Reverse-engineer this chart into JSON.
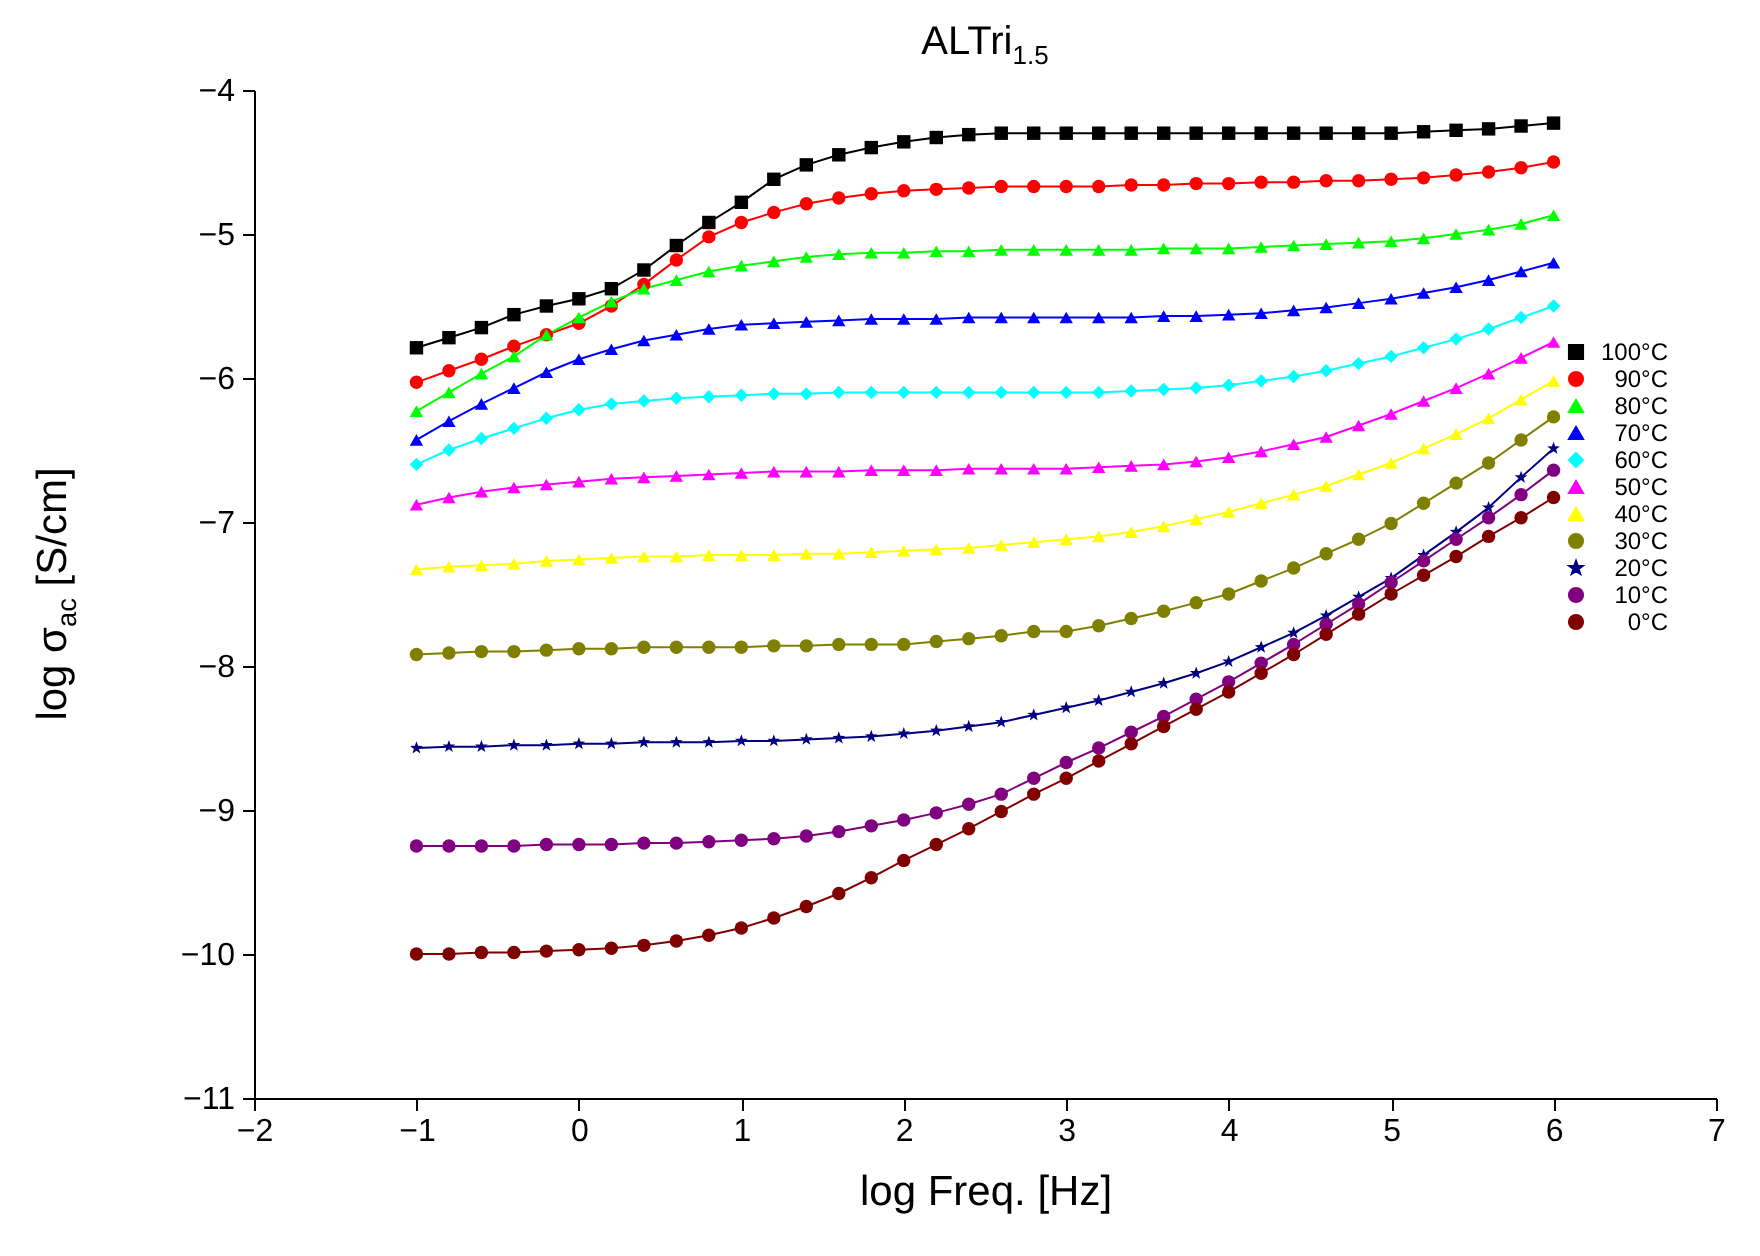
{
  "chart_data": {
    "type": "line",
    "title": "ALTri$_{1.5}$",
    "xlabel": "log Freq. [Hz]",
    "ylabel": "log σ$_{ac}$ [S/cm]",
    "x": [
      -1,
      -0.8,
      -0.6,
      -0.4,
      -0.2,
      0,
      0.2,
      0.4,
      0.6,
      0.8,
      1,
      1.2,
      1.4,
      1.6,
      1.8,
      2,
      2.2,
      2.4,
      2.6,
      2.8,
      3,
      3.2,
      3.4,
      3.6,
      3.8,
      4,
      4.2,
      4.4,
      4.6,
      4.8,
      5,
      5.2,
      5.4,
      5.6,
      5.8,
      6
    ],
    "xlim": [
      -2,
      7
    ],
    "xticks": [
      -2,
      -1,
      0,
      1,
      2,
      3,
      4,
      5,
      6,
      7
    ],
    "ylim": [
      -11,
      -4
    ],
    "yticks": [
      -11,
      -10,
      -9,
      -8,
      -7,
      -6,
      -5,
      -4
    ],
    "grid": false,
    "legend": "right",
    "line_style": "solid",
    "series": [
      {
        "name": "100°C",
        "color": "#000000",
        "marker": "square",
        "values": [
          -5.79,
          -5.72,
          -5.65,
          -5.56,
          -5.5,
          -5.45,
          -5.38,
          -5.25,
          -5.08,
          -4.92,
          -4.78,
          -4.62,
          -4.52,
          -4.45,
          -4.4,
          -4.36,
          -4.33,
          -4.31,
          -4.3,
          -4.3,
          -4.3,
          -4.3,
          -4.3,
          -4.3,
          -4.3,
          -4.3,
          -4.3,
          -4.3,
          -4.3,
          -4.3,
          -4.3,
          -4.29,
          -4.28,
          -4.27,
          -4.25,
          -4.23
        ]
      },
      {
        "name": "90°C",
        "color": "#ff0000",
        "marker": "circle",
        "values": [
          -6.03,
          -5.95,
          -5.87,
          -5.78,
          -5.7,
          -5.62,
          -5.5,
          -5.35,
          -5.18,
          -5.02,
          -4.92,
          -4.85,
          -4.79,
          -4.75,
          -4.72,
          -4.7,
          -4.69,
          -4.68,
          -4.67,
          -4.67,
          -4.67,
          -4.67,
          -4.66,
          -4.66,
          -4.65,
          -4.65,
          -4.64,
          -4.64,
          -4.63,
          -4.63,
          -4.62,
          -4.61,
          -4.59,
          -4.57,
          -4.54,
          -4.5
        ]
      },
      {
        "name": "80°C",
        "color": "#00ff00",
        "marker": "triangle",
        "values": [
          -6.23,
          -6.1,
          -5.97,
          -5.85,
          -5.7,
          -5.58,
          -5.47,
          -5.38,
          -5.32,
          -5.26,
          -5.22,
          -5.19,
          -5.16,
          -5.14,
          -5.13,
          -5.13,
          -5.12,
          -5.12,
          -5.11,
          -5.11,
          -5.11,
          -5.11,
          -5.11,
          -5.1,
          -5.1,
          -5.1,
          -5.09,
          -5.08,
          -5.07,
          -5.06,
          -5.05,
          -5.03,
          -5.0,
          -4.97,
          -4.93,
          -4.87
        ]
      },
      {
        "name": "70°C",
        "color": "#0000ff",
        "marker": "triangle",
        "values": [
          -6.43,
          -6.3,
          -6.18,
          -6.07,
          -5.96,
          -5.87,
          -5.8,
          -5.74,
          -5.7,
          -5.66,
          -5.63,
          -5.62,
          -5.61,
          -5.6,
          -5.59,
          -5.59,
          -5.59,
          -5.58,
          -5.58,
          -5.58,
          -5.58,
          -5.58,
          -5.58,
          -5.57,
          -5.57,
          -5.56,
          -5.55,
          -5.53,
          -5.51,
          -5.48,
          -5.45,
          -5.41,
          -5.37,
          -5.32,
          -5.26,
          -5.2
        ]
      },
      {
        "name": "60°C",
        "color": "#00ffff",
        "marker": "diamond",
        "values": [
          -6.6,
          -6.5,
          -6.42,
          -6.35,
          -6.28,
          -6.22,
          -6.18,
          -6.16,
          -6.14,
          -6.13,
          -6.12,
          -6.11,
          -6.11,
          -6.1,
          -6.1,
          -6.1,
          -6.1,
          -6.1,
          -6.1,
          -6.1,
          -6.1,
          -6.1,
          -6.09,
          -6.08,
          -6.07,
          -6.05,
          -6.02,
          -5.99,
          -5.95,
          -5.9,
          -5.85,
          -5.79,
          -5.73,
          -5.66,
          -5.58,
          -5.5
        ]
      },
      {
        "name": "50°C",
        "color": "#ff00ff",
        "marker": "triangle",
        "values": [
          -6.88,
          -6.83,
          -6.79,
          -6.76,
          -6.74,
          -6.72,
          -6.7,
          -6.69,
          -6.68,
          -6.67,
          -6.66,
          -6.65,
          -6.65,
          -6.65,
          -6.64,
          -6.64,
          -6.64,
          -6.63,
          -6.63,
          -6.63,
          -6.63,
          -6.62,
          -6.61,
          -6.6,
          -6.58,
          -6.55,
          -6.51,
          -6.46,
          -6.41,
          -6.33,
          -6.25,
          -6.16,
          -6.07,
          -5.97,
          -5.86,
          -5.75
        ]
      },
      {
        "name": "40°C",
        "color": "#ffff00",
        "marker": "triangle",
        "values": [
          -7.33,
          -7.31,
          -7.3,
          -7.29,
          -7.27,
          -7.26,
          -7.25,
          -7.24,
          -7.24,
          -7.23,
          -7.23,
          -7.23,
          -7.22,
          -7.22,
          -7.21,
          -7.2,
          -7.19,
          -7.18,
          -7.16,
          -7.14,
          -7.12,
          -7.1,
          -7.07,
          -7.03,
          -6.98,
          -6.93,
          -6.87,
          -6.81,
          -6.75,
          -6.67,
          -6.59,
          -6.49,
          -6.39,
          -6.28,
          -6.15,
          -6.02
        ]
      },
      {
        "name": "30°C",
        "color": "#808000",
        "marker": "circle",
        "values": [
          -7.92,
          -7.91,
          -7.9,
          -7.9,
          -7.89,
          -7.88,
          -7.88,
          -7.87,
          -7.87,
          -7.87,
          -7.87,
          -7.86,
          -7.86,
          -7.85,
          -7.85,
          -7.85,
          -7.83,
          -7.81,
          -7.79,
          -7.76,
          -7.76,
          -7.72,
          -7.67,
          -7.62,
          -7.56,
          -7.5,
          -7.41,
          -7.32,
          -7.22,
          -7.12,
          -7.01,
          -6.87,
          -6.73,
          -6.59,
          -6.43,
          -6.27
        ]
      },
      {
        "name": "20°C",
        "color": "#000080",
        "marker": "star",
        "values": [
          -8.57,
          -8.56,
          -8.56,
          -8.55,
          -8.55,
          -8.54,
          -8.54,
          -8.53,
          -8.53,
          -8.53,
          -8.52,
          -8.52,
          -8.51,
          -8.5,
          -8.49,
          -8.47,
          -8.45,
          -8.42,
          -8.39,
          -8.34,
          -8.29,
          -8.24,
          -8.18,
          -8.12,
          -8.05,
          -7.97,
          -7.87,
          -7.77,
          -7.65,
          -7.52,
          -7.39,
          -7.23,
          -7.07,
          -6.9,
          -6.69,
          -6.49
        ]
      },
      {
        "name": "10°C",
        "color": "#800080",
        "marker": "circle",
        "values": [
          -9.25,
          -9.25,
          -9.25,
          -9.25,
          -9.24,
          -9.24,
          -9.24,
          -9.23,
          -9.23,
          -9.22,
          -9.21,
          -9.2,
          -9.18,
          -9.15,
          -9.11,
          -9.07,
          -9.02,
          -8.96,
          -8.89,
          -8.78,
          -8.67,
          -8.57,
          -8.46,
          -8.35,
          -8.23,
          -8.11,
          -7.98,
          -7.85,
          -7.71,
          -7.57,
          -7.42,
          -7.27,
          -7.12,
          -6.97,
          -6.81,
          -6.64
        ]
      },
      {
        "name": "0°C",
        "color": "#800000",
        "marker": "circle",
        "values": [
          -10.0,
          -10.0,
          -9.99,
          -9.99,
          -9.98,
          -9.97,
          -9.96,
          -9.94,
          -9.91,
          -9.87,
          -9.82,
          -9.75,
          -9.67,
          -9.58,
          -9.47,
          -9.35,
          -9.24,
          -9.13,
          -9.01,
          -8.89,
          -8.78,
          -8.66,
          -8.54,
          -8.42,
          -8.3,
          -8.18,
          -8.05,
          -7.92,
          -7.78,
          -7.64,
          -7.5,
          -7.37,
          -7.24,
          -7.1,
          -6.97,
          -6.83
        ]
      }
    ]
  }
}
